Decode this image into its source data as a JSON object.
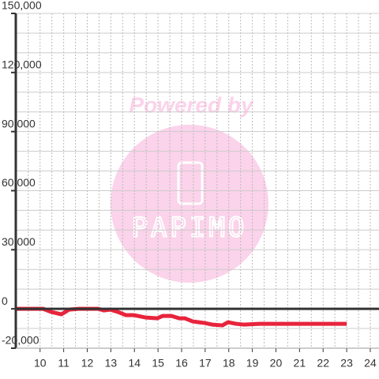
{
  "chart_data": {
    "type": "line",
    "watermark": {
      "line1": "Powered by",
      "line2": "PAPIMO"
    },
    "x": [
      9,
      10.13,
      10.47,
      10.9,
      11.23,
      11.63,
      12.47,
      12.7,
      12.97,
      13.3,
      13.63,
      13.97,
      14.47,
      14.97,
      15.2,
      15.57,
      15.9,
      16.13,
      16.47,
      16.97,
      17.3,
      17.73,
      17.97,
      18.3,
      18.63,
      19.3,
      23
    ],
    "series": [
      {
        "color": "#e8243c",
        "values": [
          0,
          0,
          -1600,
          -2800,
          -400,
          0,
          0,
          -800,
          -400,
          -1600,
          -3200,
          -3200,
          -4400,
          -4800,
          -3600,
          -3600,
          -4800,
          -4800,
          -6400,
          -7200,
          -8000,
          -8400,
          -6800,
          -7600,
          -8000,
          -7600,
          -7600
        ]
      }
    ],
    "xlim": [
      8.97,
      24.37
    ],
    "ylim": [
      -20000,
      150000
    ],
    "xticks": [
      10,
      11,
      12,
      13,
      14,
      15,
      16,
      17,
      18,
      19,
      20,
      21,
      22,
      23,
      24
    ],
    "yticks": [
      {
        "value": -20000,
        "label": "-20,000"
      },
      0,
      {
        "value": 30000,
        "label": "30,000"
      },
      {
        "value": 60000,
        "label": "60,000"
      },
      {
        "value": 90000,
        "label": "90,000"
      },
      {
        "value": 120000,
        "label": "120,000"
      },
      {
        "value": 150000,
        "label": "150,000"
      }
    ],
    "ygrid": [
      -10000,
      10000,
      20000,
      40000,
      50000,
      70000,
      80000,
      100000,
      110000,
      130000,
      140000
    ],
    "xgrid": [
      9.5,
      10.5,
      11.5,
      12.5,
      13.5,
      14.5,
      15.5,
      16.5,
      17.5,
      18.5,
      19.5,
      20.5,
      21.5,
      22.5,
      23.5
    ],
    "grid": true
  }
}
